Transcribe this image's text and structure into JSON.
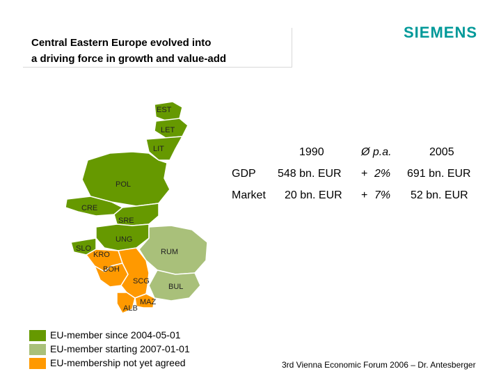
{
  "header": {
    "title_line1": "Central Eastern Europe evolved into",
    "title_line2": "a driving force in growth and value-add",
    "logo": "SIEMENS"
  },
  "map": {
    "labels": {
      "est": "EST",
      "let": "LET",
      "lit": "LIT",
      "pol": "POL",
      "cre": "CRE",
      "sre": "SRE",
      "ung": "UNG",
      "slo": "SLO",
      "kro": "KRO",
      "rum": "RUM",
      "boh": "BOH",
      "scg": "SCG",
      "bul": "BUL",
      "alb": "ALB",
      "maz": "MAZ"
    }
  },
  "table": {
    "col1": "1990",
    "col2": "Ø p.a.",
    "col3": "2005",
    "rows": [
      {
        "label": "GDP",
        "v1990": "548 bn. EUR",
        "growth_sign": "+",
        "growth": "2%",
        "v2005": "691 bn. EUR"
      },
      {
        "label": "Market",
        "v1990": "20 bn. EUR",
        "growth_sign": "+",
        "growth": "7%",
        "v2005": "52 bn. EUR"
      }
    ]
  },
  "legend": [
    {
      "text": "EU-member since 2004-05-01",
      "color": "#669900"
    },
    {
      "text": "EU-member starting 2007-01-01",
      "color": "#a9c07a"
    },
    {
      "text": "EU-membership not yet agreed",
      "color": "#ff9900"
    }
  ],
  "colors": {
    "eu2004": "#669900",
    "eu2007": "#a9c07a",
    "noteu": "#ff9900",
    "logo": "#009999"
  },
  "footer": "3rd Vienna Economic Forum 2006 – Dr. Antesberger"
}
